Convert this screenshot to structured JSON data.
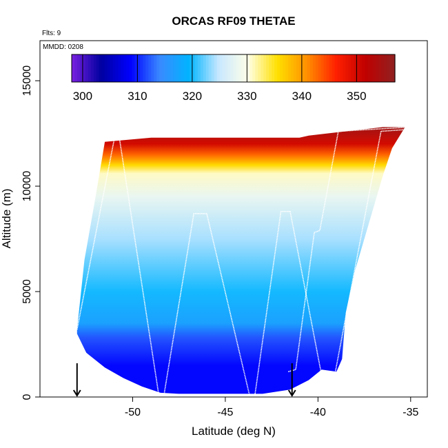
{
  "chart_data": {
    "type": "heatmap",
    "title": "ORCAS RF09 THETAE",
    "annotations": {
      "flights": "Flts: 9",
      "date": "MMDD: 0208"
    },
    "xlabel": "Latitude (deg N)",
    "ylabel": "Altitude (m)",
    "xlim": [
      -55,
      -34.1
    ],
    "ylim": [
      0,
      16900
    ],
    "x_ticks": [
      -50,
      -45,
      -40,
      -35
    ],
    "x_tick_labels": [
      "-50",
      "-45",
      "-40",
      "-35"
    ],
    "y_ticks": [
      0,
      5000,
      10000,
      15000
    ],
    "y_tick_labels": [
      "0",
      "5000",
      "10000",
      "15000"
    ],
    "grid": false,
    "colorbar": {
      "range": [
        298,
        357
      ],
      "ticks": [
        300,
        310,
        320,
        330,
        340,
        350
      ],
      "tick_labels": [
        "300",
        "310",
        "320",
        "330",
        "340",
        "350"
      ],
      "colors": [
        "#7a20e0",
        "#0000a0",
        "#0000ff",
        "#3a8aff",
        "#00b4ff",
        "#c8e8ff",
        "#ffffe8",
        "#ffe000",
        "#ff9000",
        "#ff2000",
        "#c00000",
        "#902020"
      ]
    },
    "field": {
      "domain_bottom": [
        [
          -53.0,
          3000
        ],
        [
          -52.5,
          2100
        ],
        [
          -51.5,
          1400
        ],
        [
          -50.5,
          900
        ],
        [
          -49.5,
          500
        ],
        [
          -48.5,
          200
        ],
        [
          -47.5,
          150
        ],
        [
          -45,
          150
        ],
        [
          -43,
          150
        ],
        [
          -41.5,
          350
        ],
        [
          -40.5,
          800
        ],
        [
          -39.8,
          1300
        ],
        [
          -39,
          1200
        ],
        [
          -38.7,
          1800
        ]
      ],
      "domain_top": [
        [
          -53.0,
          3200
        ],
        [
          -52.6,
          6500
        ],
        [
          -52.0,
          9500
        ],
        [
          -51.5,
          12100
        ],
        [
          -49,
          12300
        ],
        [
          -46,
          12300
        ],
        [
          -43,
          12300
        ],
        [
          -41,
          12300
        ],
        [
          -40.5,
          12400
        ],
        [
          -38.5,
          12600
        ],
        [
          -37.5,
          12700
        ],
        [
          -36.5,
          12800
        ],
        [
          -35.3,
          12800
        ]
      ],
      "domain_right": [
        [
          -35.3,
          12800
        ],
        [
          -36,
          11800
        ],
        [
          -36.5,
          10500
        ],
        [
          -37,
          9000
        ],
        [
          -37.5,
          7500
        ],
        [
          -38,
          6000
        ],
        [
          -38.5,
          4000
        ],
        [
          -38.7,
          1800
        ]
      ],
      "layers": [
        {
          "altitude": 0,
          "thetae": 309
        },
        {
          "altitude": 1500,
          "thetae": 309
        },
        {
          "altitude": 2800,
          "thetae": 312
        },
        {
          "altitude": 3500,
          "thetae": 317
        },
        {
          "altitude": 5000,
          "thetae": 320
        },
        {
          "altitude": 7500,
          "thetae": 324
        },
        {
          "altitude": 9500,
          "thetae": 328
        },
        {
          "altitude": 10600,
          "thetae": 331
        },
        {
          "altitude": 11000,
          "thetae": 336
        },
        {
          "altitude": 11500,
          "thetae": 343
        },
        {
          "altitude": 12000,
          "thetae": 350
        },
        {
          "altitude": 12800,
          "thetae": 355
        }
      ]
    },
    "flight_track": {
      "color": "#ffffff",
      "points": [
        [
          -53,
          3200
        ],
        [
          -51.0,
          12200
        ],
        [
          -50.7,
          12200
        ],
        [
          -48.6,
          150
        ],
        [
          -48.3,
          150
        ],
        [
          -46.7,
          8700
        ],
        [
          -46.0,
          8700
        ],
        [
          -43.7,
          100
        ],
        [
          -43.4,
          100
        ],
        [
          -42.0,
          8800
        ],
        [
          -41.5,
          8800
        ],
        [
          -39.6,
          100
        ],
        [
          -39.3,
          100
        ],
        [
          -36.6,
          12600
        ],
        [
          -35.0,
          12700
        ]
      ],
      "branch": [
        [
          -41.6,
          1200
        ],
        [
          -41.2,
          1300
        ],
        [
          -40.2,
          7800
        ],
        [
          -39.9,
          7900
        ],
        [
          -38.9,
          12600
        ],
        [
          -35.0,
          12800
        ]
      ]
    },
    "markers": [
      {
        "type": "arrow-down",
        "x": -53.0,
        "y": 600
      },
      {
        "type": "arrow-down",
        "x": -41.4,
        "y": 600
      }
    ]
  }
}
